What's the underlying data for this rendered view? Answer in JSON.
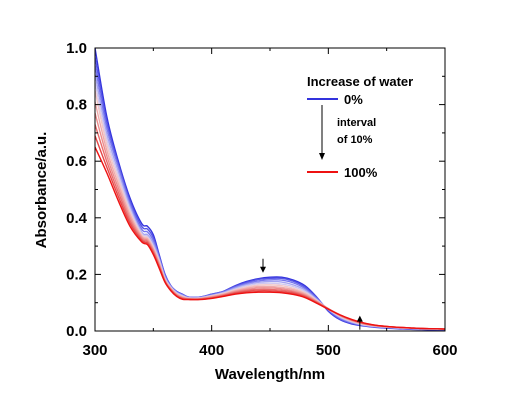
{
  "chart_data": {
    "type": "line",
    "xlabel": "Wavelength/nm",
    "ylabel": "Absorbance/a.u.",
    "xlim": [
      300,
      600
    ],
    "ylim": [
      0.0,
      1.0
    ],
    "xticks": [
      300,
      400,
      500,
      600
    ],
    "yticks": [
      0.0,
      0.2,
      0.4,
      0.6,
      0.8,
      1.0
    ],
    "x_tick_labels": [
      "300",
      "400",
      "500",
      "600"
    ],
    "y_tick_labels": [
      "0.0",
      "0.2",
      "0.4",
      "0.6",
      "0.8",
      "1.0"
    ],
    "grid": false,
    "legend_position": "top-right",
    "legend": {
      "title": "Increase of water",
      "first_label": "0%",
      "last_label": "100%",
      "note_line1": "interval",
      "note_line2": "of 10%",
      "first_color": "#3333dd",
      "last_color": "#ee1111"
    },
    "x": [
      300,
      310,
      320,
      330,
      340,
      345,
      350,
      355,
      360,
      365,
      370,
      375,
      380,
      390,
      400,
      410,
      420,
      430,
      440,
      450,
      460,
      470,
      480,
      490,
      500,
      510,
      520,
      530,
      540,
      550,
      560,
      570,
      580,
      590,
      600
    ],
    "series": [
      {
        "color": "#3333dd",
        "values": [
          1.0,
          0.76,
          0.6,
          0.47,
          0.38,
          0.37,
          0.34,
          0.27,
          0.2,
          0.16,
          0.14,
          0.13,
          0.12,
          0.12,
          0.13,
          0.14,
          0.16,
          0.175,
          0.185,
          0.19,
          0.19,
          0.18,
          0.16,
          0.12,
          0.07,
          0.04,
          0.025,
          0.018,
          0.013,
          0.01,
          0.008,
          0.006,
          0.005,
          0.004,
          0.004
        ]
      },
      {
        "color": "#5555e6",
        "values": [
          0.97,
          0.74,
          0.59,
          0.46,
          0.37,
          0.36,
          0.33,
          0.265,
          0.2,
          0.16,
          0.14,
          0.13,
          0.12,
          0.12,
          0.13,
          0.14,
          0.158,
          0.172,
          0.182,
          0.186,
          0.186,
          0.176,
          0.155,
          0.118,
          0.072,
          0.042,
          0.027,
          0.019,
          0.014,
          0.011,
          0.009,
          0.007,
          0.006,
          0.005,
          0.005
        ]
      },
      {
        "color": "#7777ee",
        "values": [
          0.94,
          0.72,
          0.58,
          0.45,
          0.36,
          0.35,
          0.32,
          0.26,
          0.195,
          0.158,
          0.138,
          0.128,
          0.12,
          0.12,
          0.128,
          0.138,
          0.155,
          0.168,
          0.177,
          0.181,
          0.18,
          0.17,
          0.15,
          0.115,
          0.075,
          0.045,
          0.029,
          0.02,
          0.015,
          0.012,
          0.01,
          0.008,
          0.007,
          0.006,
          0.005
        ]
      },
      {
        "color": "#a3a3f2",
        "values": [
          0.91,
          0.7,
          0.565,
          0.44,
          0.35,
          0.34,
          0.31,
          0.255,
          0.19,
          0.156,
          0.136,
          0.126,
          0.118,
          0.118,
          0.126,
          0.136,
          0.152,
          0.164,
          0.172,
          0.175,
          0.173,
          0.163,
          0.145,
          0.112,
          0.076,
          0.048,
          0.031,
          0.021,
          0.016,
          0.013,
          0.011,
          0.009,
          0.007,
          0.006,
          0.006
        ]
      },
      {
        "color": "#d0c8ee",
        "values": [
          0.88,
          0.68,
          0.55,
          0.43,
          0.345,
          0.335,
          0.3,
          0.25,
          0.186,
          0.154,
          0.134,
          0.124,
          0.117,
          0.117,
          0.125,
          0.134,
          0.148,
          0.16,
          0.167,
          0.169,
          0.166,
          0.157,
          0.14,
          0.11,
          0.077,
          0.05,
          0.033,
          0.022,
          0.017,
          0.014,
          0.011,
          0.009,
          0.008,
          0.007,
          0.006
        ]
      },
      {
        "color": "#f2c6c6",
        "values": [
          0.85,
          0.66,
          0.535,
          0.42,
          0.34,
          0.33,
          0.295,
          0.245,
          0.183,
          0.152,
          0.132,
          0.122,
          0.116,
          0.116,
          0.124,
          0.132,
          0.145,
          0.155,
          0.162,
          0.163,
          0.16,
          0.151,
          0.135,
          0.108,
          0.078,
          0.052,
          0.035,
          0.024,
          0.018,
          0.014,
          0.012,
          0.01,
          0.008,
          0.007,
          0.007
        ]
      },
      {
        "color": "#efaaaa",
        "values": [
          0.81,
          0.64,
          0.52,
          0.41,
          0.335,
          0.325,
          0.29,
          0.24,
          0.18,
          0.15,
          0.13,
          0.12,
          0.115,
          0.115,
          0.122,
          0.13,
          0.142,
          0.151,
          0.157,
          0.157,
          0.154,
          0.146,
          0.131,
          0.106,
          0.079,
          0.054,
          0.037,
          0.025,
          0.019,
          0.015,
          0.012,
          0.01,
          0.009,
          0.008,
          0.007
        ]
      },
      {
        "color": "#ec8c8c",
        "values": [
          0.77,
          0.62,
          0.505,
          0.4,
          0.33,
          0.32,
          0.285,
          0.235,
          0.178,
          0.148,
          0.128,
          0.118,
          0.114,
          0.114,
          0.12,
          0.128,
          0.139,
          0.147,
          0.152,
          0.152,
          0.149,
          0.141,
          0.127,
          0.104,
          0.079,
          0.055,
          0.038,
          0.026,
          0.019,
          0.015,
          0.013,
          0.011,
          0.009,
          0.008,
          0.007
        ]
      },
      {
        "color": "#e96b6b",
        "values": [
          0.73,
          0.6,
          0.49,
          0.39,
          0.325,
          0.315,
          0.28,
          0.23,
          0.176,
          0.146,
          0.126,
          0.116,
          0.113,
          0.113,
          0.118,
          0.126,
          0.136,
          0.143,
          0.147,
          0.147,
          0.144,
          0.137,
          0.124,
          0.102,
          0.078,
          0.056,
          0.039,
          0.027,
          0.02,
          0.016,
          0.013,
          0.011,
          0.009,
          0.008,
          0.007
        ]
      },
      {
        "color": "#e64545",
        "values": [
          0.69,
          0.58,
          0.475,
          0.38,
          0.32,
          0.31,
          0.275,
          0.226,
          0.174,
          0.144,
          0.124,
          0.114,
          0.112,
          0.112,
          0.116,
          0.124,
          0.133,
          0.139,
          0.142,
          0.142,
          0.139,
          0.133,
          0.121,
          0.1,
          0.078,
          0.057,
          0.04,
          0.028,
          0.02,
          0.016,
          0.013,
          0.011,
          0.009,
          0.008,
          0.007
        ]
      },
      {
        "color": "#ee1111",
        "values": [
          0.65,
          0.56,
          0.46,
          0.37,
          0.315,
          0.305,
          0.27,
          0.222,
          0.172,
          0.142,
          0.122,
          0.112,
          0.111,
          0.111,
          0.115,
          0.122,
          0.13,
          0.135,
          0.137,
          0.137,
          0.135,
          0.129,
          0.118,
          0.098,
          0.077,
          0.057,
          0.041,
          0.029,
          0.021,
          0.016,
          0.013,
          0.011,
          0.009,
          0.008,
          0.007
        ]
      }
    ],
    "annotations": [
      {
        "type": "arrow",
        "direction": "down",
        "x": 444,
        "y": 0.22
      },
      {
        "type": "arrow",
        "direction": "up",
        "x": 527,
        "y": 0.04
      }
    ]
  }
}
